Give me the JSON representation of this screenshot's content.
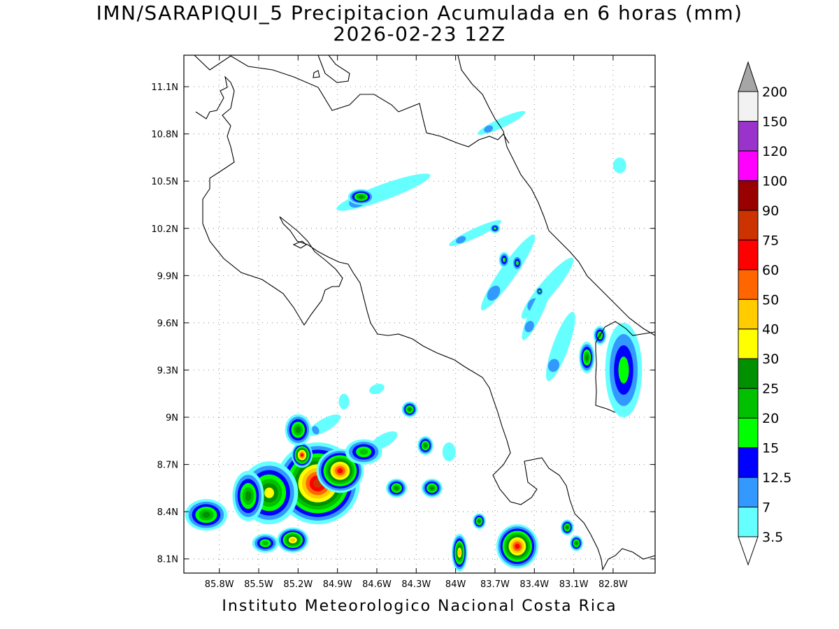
{
  "title": "IMN/SARAPIQUI_5 Precipitacion Acumulada en 6 horas (mm)",
  "subtitle": "2026-02-23 12Z",
  "footer": "Instituto Meteorologico Nacional Costa Rica",
  "chart_data": {
    "type": "heatmap",
    "lon_range": [
      -86.07,
      -82.48
    ],
    "lat_range": [
      8.01,
      11.3
    ],
    "grid": true,
    "x_tick_labels": [
      "85.8W",
      "85.5W",
      "85.2W",
      "84.9W",
      "84.6W",
      "84.3W",
      "84W",
      "83.7W",
      "83.4W",
      "83.1W",
      "82.8W"
    ],
    "x_tick_values": [
      -85.8,
      -85.5,
      -85.2,
      -84.9,
      -84.6,
      -84.3,
      -84.0,
      -83.7,
      -83.4,
      -83.1,
      -82.8
    ],
    "y_tick_labels": [
      "8.1N",
      "8.4N",
      "8.7N",
      "9N",
      "9.3N",
      "9.6N",
      "9.9N",
      "10.2N",
      "10.5N",
      "10.8N",
      "11.1N"
    ],
    "y_tick_values": [
      8.1,
      8.4,
      8.7,
      9.0,
      9.3,
      9.6,
      9.9,
      10.2,
      10.5,
      10.8,
      11.1
    ],
    "colorbar": {
      "labels": [
        "3.5",
        "7",
        "12.5",
        "15",
        "20",
        "25",
        "30",
        "40",
        "50",
        "60",
        "75",
        "90",
        "100",
        "120",
        "150",
        "200"
      ],
      "colors": [
        "#66ffff",
        "#3399ff",
        "#0000ff",
        "#00ff00",
        "#00c000",
        "#009000",
        "#ffff00",
        "#ffcc00",
        "#ff6600",
        "#ff0000",
        "#cc3300",
        "#990000",
        "#ff00ff",
        "#9933cc",
        "#f2f2f2",
        "#a6a6a6"
      ]
    },
    "precip_cells": [
      {
        "lon": -85.05,
        "lat": 8.58,
        "rlon": 0.32,
        "rlat": 0.26,
        "peak": 75
      },
      {
        "lon": -84.88,
        "lat": 8.66,
        "rlon": 0.18,
        "rlat": 0.14,
        "peak": 60
      },
      {
        "lon": -85.17,
        "lat": 8.76,
        "rlon": 0.08,
        "rlat": 0.08,
        "peak": 60
      },
      {
        "lon": -85.42,
        "lat": 8.52,
        "rlon": 0.22,
        "rlat": 0.2,
        "peak": 30
      },
      {
        "lon": -85.9,
        "lat": 8.38,
        "rlon": 0.16,
        "rlat": 0.1,
        "peak": 25
      },
      {
        "lon": -85.58,
        "lat": 8.5,
        "rlon": 0.12,
        "rlat": 0.16,
        "peak": 25
      },
      {
        "lon": -85.2,
        "lat": 8.92,
        "rlon": 0.1,
        "rlat": 0.1,
        "peak": 25
      },
      {
        "lon": -84.7,
        "lat": 8.78,
        "rlon": 0.14,
        "rlat": 0.08,
        "peak": 20
      },
      {
        "lon": -85.24,
        "lat": 8.22,
        "rlon": 0.12,
        "rlat": 0.08,
        "peak": 40
      },
      {
        "lon": -85.45,
        "lat": 8.2,
        "rlon": 0.1,
        "rlat": 0.06,
        "peak": 20
      },
      {
        "lon": -84.45,
        "lat": 8.55,
        "rlon": 0.08,
        "rlat": 0.06,
        "peak": 25
      },
      {
        "lon": -84.18,
        "lat": 8.55,
        "rlon": 0.08,
        "rlat": 0.06,
        "peak": 25
      },
      {
        "lon": -84.23,
        "lat": 8.82,
        "rlon": 0.06,
        "rlat": 0.06,
        "peak": 25
      },
      {
        "lon": -84.35,
        "lat": 9.05,
        "rlon": 0.06,
        "rlat": 0.05,
        "peak": 25
      },
      {
        "lon": -83.53,
        "lat": 8.18,
        "rlon": 0.16,
        "rlat": 0.14,
        "peak": 60
      },
      {
        "lon": -83.97,
        "lat": 8.14,
        "rlon": 0.06,
        "rlat": 0.12,
        "peak": 40
      },
      {
        "lon": -83.08,
        "lat": 8.2,
        "rlon": 0.05,
        "rlat": 0.05,
        "peak": 25
      },
      {
        "lon": -83.15,
        "lat": 8.3,
        "rlon": 0.05,
        "rlat": 0.05,
        "peak": 25
      },
      {
        "lon": -83.82,
        "lat": 8.34,
        "rlon": 0.05,
        "rlat": 0.05,
        "peak": 25
      },
      {
        "lon": -82.72,
        "lat": 9.3,
        "rlon": 0.14,
        "rlat": 0.3,
        "peak": 15
      },
      {
        "lon": -83.0,
        "lat": 9.38,
        "rlon": 0.06,
        "rlat": 0.1,
        "peak": 25
      },
      {
        "lon": -82.9,
        "lat": 9.52,
        "rlon": 0.05,
        "rlat": 0.06,
        "peak": 20
      },
      {
        "lon": -84.72,
        "lat": 10.4,
        "rlon": 0.1,
        "rlat": 0.05,
        "peak": 25
      },
      {
        "lon": -83.7,
        "lat": 10.2,
        "rlon": 0.04,
        "rlat": 0.03,
        "peak": 15
      },
      {
        "lon": -83.63,
        "lat": 10.0,
        "rlon": 0.04,
        "rlat": 0.05,
        "peak": 15
      },
      {
        "lon": -83.53,
        "lat": 9.98,
        "rlon": 0.04,
        "rlat": 0.05,
        "peak": 15
      },
      {
        "lon": -83.36,
        "lat": 9.8,
        "rlon": 0.03,
        "rlat": 0.03,
        "peak": 15
      }
    ],
    "light_bands": [
      {
        "lon": -84.55,
        "lat": 10.43,
        "rlon": 0.38,
        "rlat": 0.05,
        "rot": -20
      },
      {
        "lon": -83.65,
        "lat": 10.87,
        "rlon": 0.2,
        "rlat": 0.03,
        "rot": -25
      },
      {
        "lon": -83.85,
        "lat": 10.17,
        "rlon": 0.22,
        "rlat": 0.03,
        "rot": -25
      },
      {
        "lon": -83.6,
        "lat": 9.92,
        "rlon": 0.35,
        "rlat": 0.05,
        "rot": -55
      },
      {
        "lon": -83.3,
        "lat": 9.82,
        "rlon": 0.3,
        "rlat": 0.05,
        "rot": -50
      },
      {
        "lon": -83.2,
        "lat": 9.45,
        "rlon": 0.28,
        "rlat": 0.05,
        "rot": -70
      },
      {
        "lon": -83.38,
        "lat": 9.68,
        "rlon": 0.25,
        "rlat": 0.04,
        "rot": -65
      },
      {
        "lon": -85.0,
        "lat": 8.95,
        "rlon": 0.14,
        "rlat": 0.04,
        "rot": -30
      },
      {
        "lon": -84.55,
        "lat": 8.85,
        "rlon": 0.12,
        "rlat": 0.04,
        "rot": -30
      },
      {
        "lon": -84.85,
        "lat": 9.1,
        "rlon": 0.04,
        "rlat": 0.05,
        "rot": 0
      },
      {
        "lon": -84.6,
        "lat": 9.18,
        "rlon": 0.06,
        "rlat": 0.03,
        "rot": -20
      },
      {
        "lon": -84.05,
        "lat": 8.78,
        "rlon": 0.05,
        "rlat": 0.06,
        "rot": 0
      },
      {
        "lon": -82.75,
        "lat": 10.6,
        "rlon": 0.05,
        "rlat": 0.05,
        "rot": 0
      }
    ]
  }
}
